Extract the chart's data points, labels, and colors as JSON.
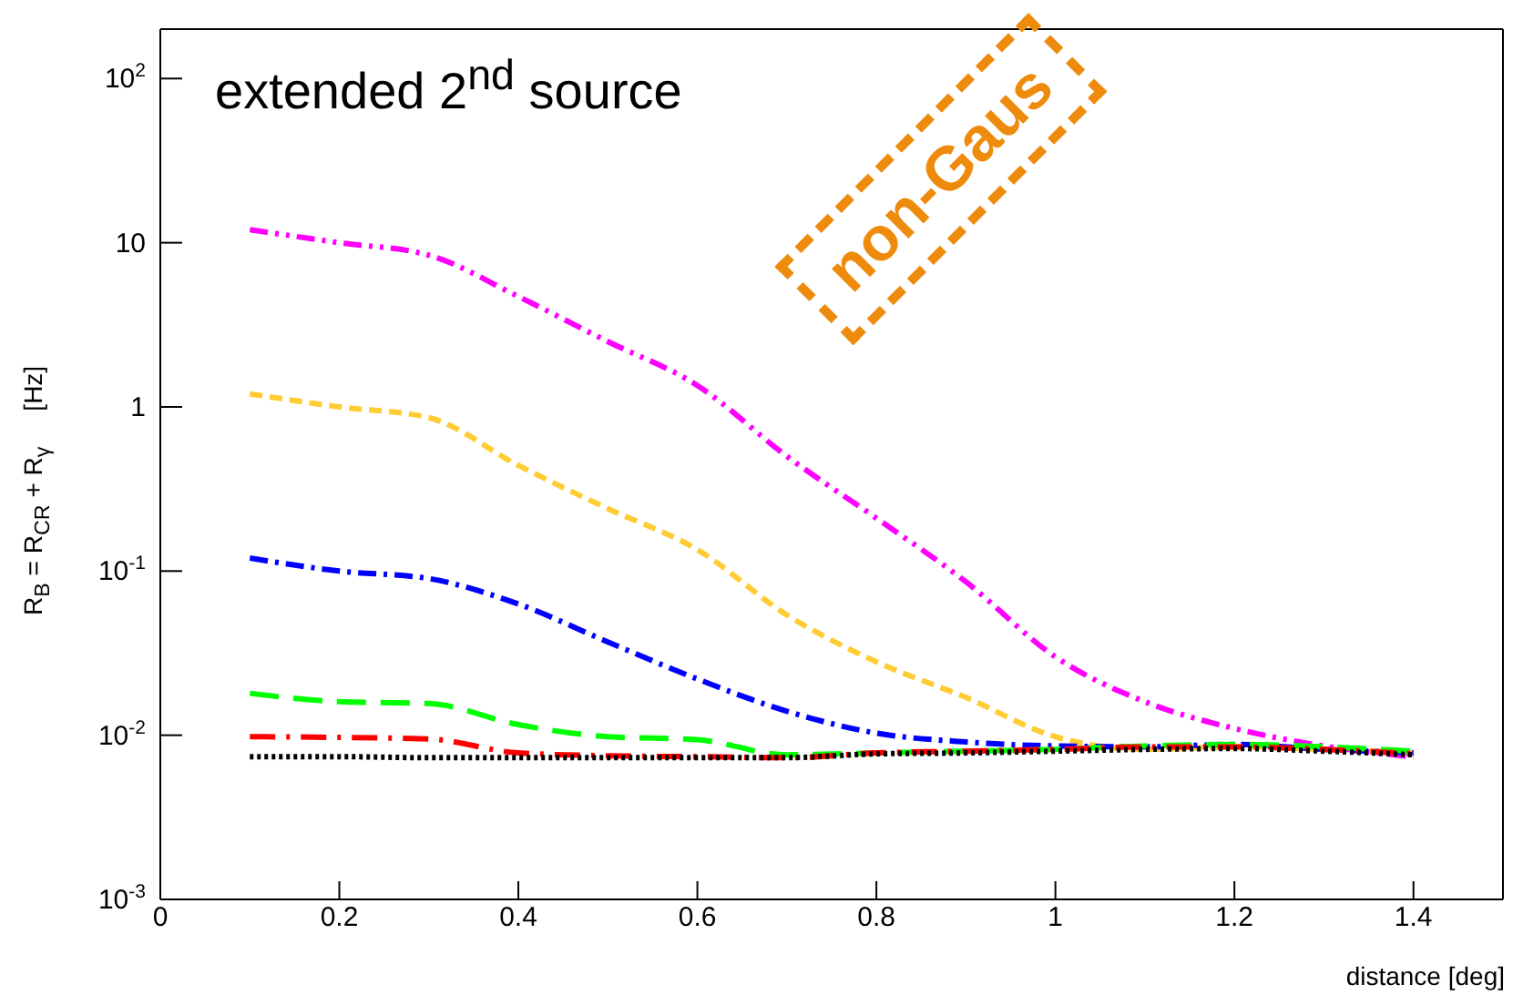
{
  "chart_data": {
    "type": "line",
    "xlabel": "distance [deg]",
    "ylabel": "R$_{B}$ = R$_{CR}$ + R$_{γ}$     [Hz]",
    "annotations": [
      "extended 2$^{nd}$ source",
      "non-Gaus"
    ],
    "log": "y",
    "xlim": [
      0,
      1.5
    ],
    "xticks": [
      0,
      0.2,
      0.4,
      0.6,
      0.8,
      1,
      1.2,
      1.4
    ],
    "ylim": [
      0.001,
      200
    ],
    "yticks": [
      {
        "value": 0.001,
        "label": "10$^{-3}$"
      },
      {
        "value": 0.01,
        "label": "10$^{-2}$"
      },
      {
        "value": 0.1,
        "label": "10$^{-1}$"
      },
      1,
      10,
      {
        "value": 100,
        "label": "10$^{2}$"
      }
    ],
    "x": [
      0.1,
      0.2,
      0.3,
      0.4,
      0.5,
      0.6,
      0.7,
      0.8,
      0.9,
      1.0,
      1.1,
      1.2,
      1.3,
      1.4
    ],
    "series": [
      {
        "color": "#ff00ff",
        "line_style": "dashed",
        "values": [
          12,
          10,
          8.4,
          4.7,
          2.5,
          1.35,
          0.5,
          0.21,
          0.086,
          0.03,
          0.016,
          0.011,
          0.0086,
          0.0074
        ]
      },
      {
        "color": "#ffcc33",
        "line_style": "dashed",
        "values": [
          1.2,
          1.0,
          0.86,
          0.44,
          0.24,
          0.135,
          0.054,
          0.028,
          0.017,
          0.0098,
          0.0082,
          0.0085,
          0.0082,
          0.0078
        ]
      },
      {
        "color": "#0000ff",
        "line_style": "dashed",
        "values": [
          0.12,
          0.1,
          0.09,
          0.063,
          0.037,
          0.022,
          0.014,
          0.0103,
          0.0091,
          0.0086,
          0.0085,
          0.0088,
          0.0082,
          0.0078
        ]
      },
      {
        "color": "#00ff00",
        "line_style": "dashed",
        "values": [
          0.018,
          0.016,
          0.0156,
          0.0116,
          0.0098,
          0.0094,
          0.0076,
          0.0078,
          0.008,
          0.0082,
          0.0086,
          0.0088,
          0.0085,
          0.008
        ]
      },
      {
        "color": "#ff0000",
        "line_style": "dashed",
        "values": [
          0.0098,
          0.0097,
          0.0095,
          0.0078,
          0.0075,
          0.0074,
          0.0073,
          0.0078,
          0.008,
          0.0082,
          0.0085,
          0.0085,
          0.0082,
          0.0077
        ]
      },
      {
        "color": "#000000",
        "line_style": "dotted",
        "values": [
          0.0074,
          0.0074,
          0.0073,
          0.0073,
          0.0073,
          0.0073,
          0.0073,
          0.0077,
          0.0078,
          0.008,
          0.0082,
          0.0083,
          0.008,
          0.0076
        ]
      }
    ]
  }
}
